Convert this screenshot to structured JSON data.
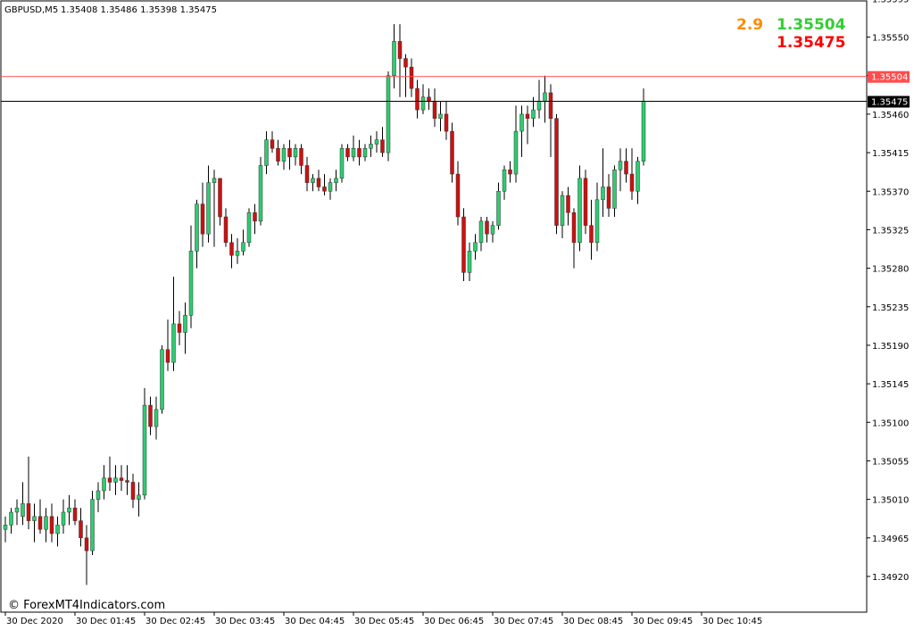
{
  "header": {
    "symbol": "GBPUSD,M5",
    "ohlc": "1.35408 1.35486 1.35398 1.35475"
  },
  "indicator": {
    "spread": "2.9",
    "ask": "1.35504",
    "bid": "1.35475",
    "spread_color": "#ff8c00",
    "ask_color": "#32cd32",
    "bid_color": "#ff0000"
  },
  "ask_line": {
    "label": "1.35504",
    "color": "#ff4d4d"
  },
  "bid_line": {
    "label": "1.35475",
    "color": "#000000"
  },
  "watermark": "© ForexMT4Indicators.com",
  "colors": {
    "bull": "#2ecc71",
    "bear": "#cc1111",
    "wick": "#000000",
    "bull_border": "#000000",
    "bear_border": "#000000",
    "frame": "#000000"
  },
  "chart_data": {
    "type": "candlestick",
    "ylim": [
      1.34897,
      1.35585
    ],
    "y_ticks": [
      "1.35595",
      "1.35550",
      "1.35505",
      "1.35460",
      "1.35415",
      "1.35370",
      "1.35325",
      "1.35280",
      "1.35235",
      "1.35190",
      "1.35145",
      "1.35100",
      "1.35055",
      "1.35010",
      "1.34965",
      "1.34920"
    ],
    "x_labels": [
      "30 Dec 2020",
      "30 Dec 01:45",
      "30 Dec 02:45",
      "30 Dec 03:45",
      "30 Dec 04:45",
      "30 Dec 05:45",
      "30 Dec 06:45",
      "30 Dec 07:45",
      "30 Dec 08:45",
      "30 Dec 09:45",
      "30 Dec 10:45"
    ],
    "candles": [
      [
        1.34975,
        1.3499,
        1.3496,
        1.3498
      ],
      [
        1.3498,
        1.35,
        1.3497,
        1.34995
      ],
      [
        1.34995,
        1.3501,
        1.3498,
        1.35
      ],
      [
        1.3499,
        1.3503,
        1.3498,
        1.35005
      ],
      [
        1.35005,
        1.3506,
        1.34975,
        1.34985
      ],
      [
        1.34985,
        1.35005,
        1.3496,
        1.3499
      ],
      [
        1.3499,
        1.3501,
        1.3497,
        1.34975
      ],
      [
        1.34975,
        1.35,
        1.3496,
        1.3499
      ],
      [
        1.3499,
        1.35005,
        1.3496,
        1.3497
      ],
      [
        1.3497,
        1.3499,
        1.34955,
        1.3498
      ],
      [
        1.3498,
        1.3501,
        1.3497,
        1.34995
      ],
      [
        1.34995,
        1.35015,
        1.3498,
        1.35
      ],
      [
        1.35,
        1.3501,
        1.3498,
        1.34985
      ],
      [
        1.34985,
        1.35,
        1.34955,
        1.34965
      ],
      [
        1.34965,
        1.3498,
        1.3491,
        1.3495
      ],
      [
        1.3495,
        1.3502,
        1.34945,
        1.3501
      ],
      [
        1.3501,
        1.3503,
        1.34995,
        1.3502
      ],
      [
        1.3502,
        1.3505,
        1.3501,
        1.35035
      ],
      [
        1.35035,
        1.3506,
        1.3502,
        1.3503
      ],
      [
        1.3503,
        1.3505,
        1.35015,
        1.35035
      ],
      [
        1.35035,
        1.3505,
        1.3502,
        1.35032
      ],
      [
        1.35032,
        1.3505,
        1.35015,
        1.3503
      ],
      [
        1.3503,
        1.3504,
        1.35,
        1.3501
      ],
      [
        1.3501,
        1.3503,
        1.3499,
        1.35015
      ],
      [
        1.35015,
        1.3514,
        1.3501,
        1.3512
      ],
      [
        1.3512,
        1.3513,
        1.35085,
        1.35095
      ],
      [
        1.35095,
        1.3513,
        1.3508,
        1.35115
      ],
      [
        1.35115,
        1.3519,
        1.3511,
        1.35185
      ],
      [
        1.35185,
        1.3522,
        1.3516,
        1.3517
      ],
      [
        1.3517,
        1.3527,
        1.3516,
        1.35215
      ],
      [
        1.35215,
        1.3523,
        1.3519,
        1.35205
      ],
      [
        1.35205,
        1.3524,
        1.3518,
        1.35225
      ],
      [
        1.35225,
        1.3533,
        1.3521,
        1.353
      ],
      [
        1.353,
        1.3536,
        1.3528,
        1.35355
      ],
      [
        1.35355,
        1.3538,
        1.35305,
        1.3532
      ],
      [
        1.3532,
        1.354,
        1.3531,
        1.3538
      ],
      [
        1.3538,
        1.35395,
        1.35305,
        1.35385
      ],
      [
        1.35385,
        1.3538,
        1.3533,
        1.3534
      ],
      [
        1.3534,
        1.3535,
        1.35305,
        1.3531
      ],
      [
        1.3531,
        1.3532,
        1.3528,
        1.35295
      ],
      [
        1.35295,
        1.35315,
        1.35285,
        1.353
      ],
      [
        1.353,
        1.35325,
        1.35295,
        1.3531
      ],
      [
        1.3531,
        1.3535,
        1.35305,
        1.35345
      ],
      [
        1.35345,
        1.35355,
        1.3532,
        1.35335
      ],
      [
        1.35335,
        1.3541,
        1.3533,
        1.354
      ],
      [
        1.354,
        1.3544,
        1.3539,
        1.3543
      ],
      [
        1.3543,
        1.3544,
        1.35415,
        1.3542
      ],
      [
        1.3542,
        1.3543,
        1.354,
        1.35405
      ],
      [
        1.35405,
        1.35425,
        1.35395,
        1.3542
      ],
      [
        1.3542,
        1.3543,
        1.35395,
        1.3541
      ],
      [
        1.3541,
        1.35425,
        1.354,
        1.3542
      ],
      [
        1.3542,
        1.35425,
        1.3539,
        1.354
      ],
      [
        1.354,
        1.3541,
        1.3537,
        1.3538
      ],
      [
        1.3538,
        1.3539,
        1.3537,
        1.35385
      ],
      [
        1.35385,
        1.35395,
        1.3537,
        1.35375
      ],
      [
        1.35375,
        1.3539,
        1.35365,
        1.3537
      ],
      [
        1.3537,
        1.35385,
        1.3536,
        1.3538
      ],
      [
        1.3538,
        1.35395,
        1.3537,
        1.35385
      ],
      [
        1.35385,
        1.35425,
        1.3538,
        1.3542
      ],
      [
        1.3542,
        1.35425,
        1.35405,
        1.3541
      ],
      [
        1.3541,
        1.35435,
        1.35405,
        1.3542
      ],
      [
        1.3542,
        1.3543,
        1.354,
        1.3541
      ],
      [
        1.3541,
        1.35425,
        1.35405,
        1.3542
      ],
      [
        1.3542,
        1.35435,
        1.3541,
        1.35425
      ],
      [
        1.35425,
        1.3544,
        1.35415,
        1.3543
      ],
      [
        1.3543,
        1.35445,
        1.3541,
        1.35415
      ],
      [
        1.35415,
        1.3551,
        1.35405,
        1.35505
      ],
      [
        1.35505,
        1.35565,
        1.3549,
        1.35545
      ],
      [
        1.35545,
        1.35565,
        1.3548,
        1.35525
      ],
      [
        1.35525,
        1.3553,
        1.3548,
        1.35515
      ],
      [
        1.35515,
        1.35525,
        1.3548,
        1.3549
      ],
      [
        1.3549,
        1.355,
        1.35455,
        1.35465
      ],
      [
        1.35465,
        1.35495,
        1.3546,
        1.3548
      ],
      [
        1.3548,
        1.3549,
        1.35465,
        1.35475
      ],
      [
        1.35475,
        1.3549,
        1.35445,
        1.35455
      ],
      [
        1.35455,
        1.35475,
        1.3544,
        1.3546
      ],
      [
        1.3546,
        1.35475,
        1.3543,
        1.3544
      ],
      [
        1.3544,
        1.3545,
        1.3538,
        1.3539
      ],
      [
        1.3539,
        1.35405,
        1.3533,
        1.3534
      ],
      [
        1.3534,
        1.3535,
        1.35265,
        1.35275
      ],
      [
        1.35275,
        1.3531,
        1.35265,
        1.353
      ],
      [
        1.353,
        1.3532,
        1.3529,
        1.3531
      ],
      [
        1.3531,
        1.3534,
        1.353,
        1.35335
      ],
      [
        1.35335,
        1.3534,
        1.3531,
        1.3532
      ],
      [
        1.3532,
        1.35335,
        1.3531,
        1.3533
      ],
      [
        1.3533,
        1.3538,
        1.35325,
        1.3537
      ],
      [
        1.3537,
        1.354,
        1.3536,
        1.35395
      ],
      [
        1.35395,
        1.35405,
        1.3538,
        1.3539
      ],
      [
        1.3539,
        1.3547,
        1.3538,
        1.3544
      ],
      [
        1.3544,
        1.3547,
        1.3541,
        1.3546
      ],
      [
        1.3546,
        1.3547,
        1.35425,
        1.35455
      ],
      [
        1.35455,
        1.3548,
        1.35445,
        1.35465
      ],
      [
        1.35465,
        1.355,
        1.35455,
        1.35475
      ],
      [
        1.35475,
        1.35505,
        1.3545,
        1.35485
      ],
      [
        1.35485,
        1.35495,
        1.3541,
        1.35455
      ],
      [
        1.35455,
        1.3546,
        1.3532,
        1.3533
      ],
      [
        1.3533,
        1.3537,
        1.35315,
        1.35365
      ],
      [
        1.35365,
        1.35375,
        1.3533,
        1.35345
      ],
      [
        1.35345,
        1.3535,
        1.3528,
        1.3531
      ],
      [
        1.3531,
        1.354,
        1.353,
        1.35385
      ],
      [
        1.35385,
        1.35395,
        1.3532,
        1.3533
      ],
      [
        1.3533,
        1.3536,
        1.3529,
        1.3531
      ],
      [
        1.3531,
        1.3538,
        1.353,
        1.3536
      ],
      [
        1.3536,
        1.3542,
        1.3534,
        1.35375
      ],
      [
        1.35375,
        1.3539,
        1.3534,
        1.3535
      ],
      [
        1.3535,
        1.354,
        1.3534,
        1.35395
      ],
      [
        1.35395,
        1.3542,
        1.3537,
        1.35405
      ],
      [
        1.35405,
        1.3542,
        1.3538,
        1.3539
      ],
      [
        1.3539,
        1.3542,
        1.3536,
        1.3537
      ],
      [
        1.3537,
        1.3541,
        1.35355,
        1.35405
      ],
      [
        1.35405,
        1.3549,
        1.354,
        1.35475
      ]
    ]
  }
}
